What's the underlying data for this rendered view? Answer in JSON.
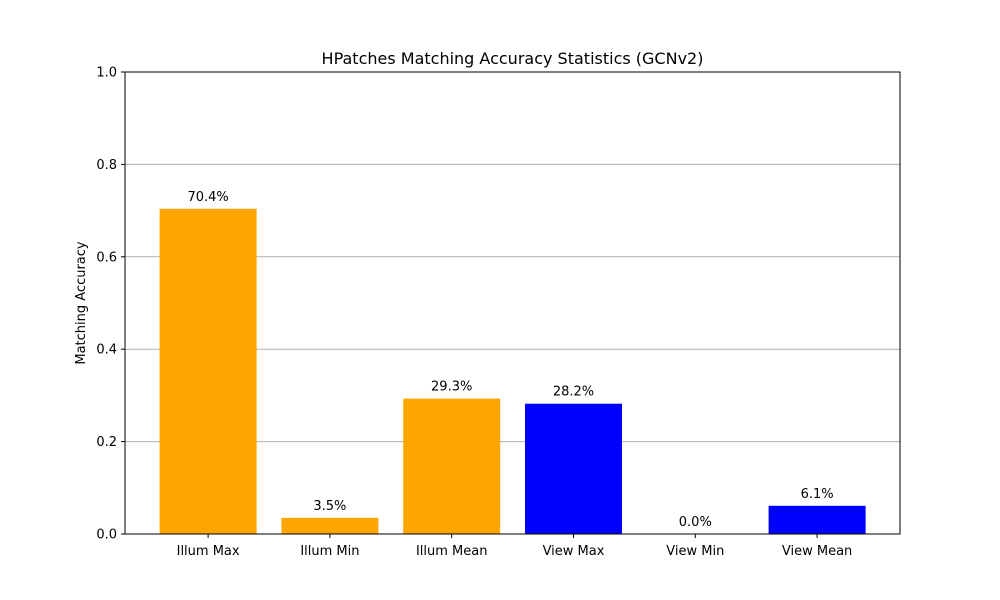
{
  "chart_data": {
    "type": "bar",
    "title": "HPatches Matching Accuracy Statistics (GCNv2)",
    "xlabel": "",
    "ylabel": "Matching Accuracy",
    "ylim": [
      0,
      1.0
    ],
    "yticks": [
      "0.0",
      "0.2",
      "0.4",
      "0.6",
      "0.8",
      "1.0"
    ],
    "grid": "y",
    "categories": [
      "Illum Max",
      "Illum Min",
      "Illum Mean",
      "View Max",
      "View Min",
      "View Mean"
    ],
    "values": [
      0.704,
      0.035,
      0.293,
      0.282,
      0.0,
      0.061
    ],
    "labels": [
      "70.4%",
      "3.5%",
      "29.3%",
      "28.2%",
      "0.0%",
      "6.1%"
    ],
    "colors": [
      "#ffa500",
      "#ffa500",
      "#ffa500",
      "#0000ff",
      "#0000ff",
      "#0000ff"
    ]
  }
}
